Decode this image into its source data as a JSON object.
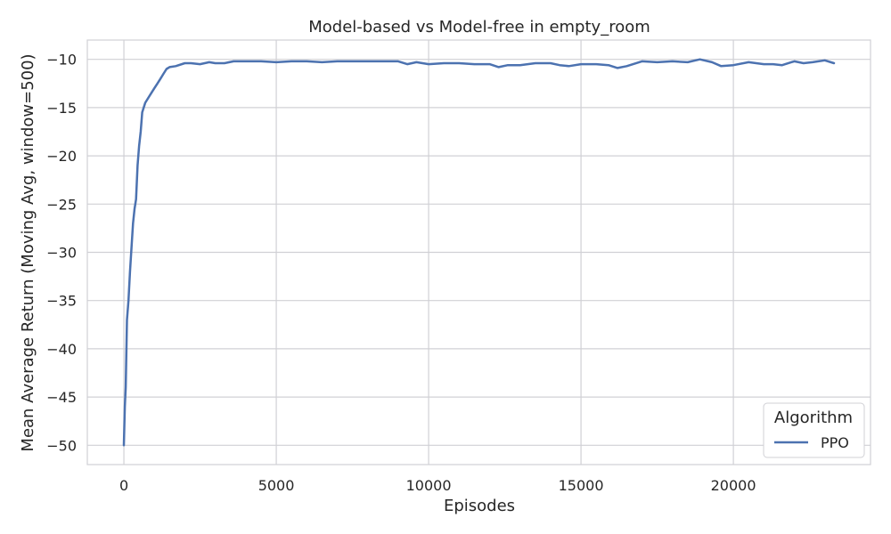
{
  "chart_data": {
    "type": "line",
    "title": "Model-based vs Model-free in empty_room",
    "xlabel": "Episodes",
    "ylabel": "Mean Average Return (Moving Avg, window=500)",
    "xlim": [
      -1200,
      24500
    ],
    "ylim": [
      -52,
      -8
    ],
    "xticks": [
      0,
      5000,
      10000,
      15000,
      20000
    ],
    "yticks": [
      -50,
      -45,
      -40,
      -35,
      -30,
      -25,
      -20,
      -15,
      -10
    ],
    "grid": true,
    "legend": {
      "title": "Algorithm",
      "placement": "bottom-right"
    },
    "series": [
      {
        "name": "PPO",
        "color": "#4c72b0",
        "x": [
          0,
          30,
          60,
          100,
          150,
          200,
          250,
          300,
          350,
          400,
          450,
          500,
          550,
          600,
          650,
          700,
          800,
          900,
          1000,
          1100,
          1200,
          1300,
          1400,
          1500,
          1700,
          2000,
          2200,
          2500,
          2800,
          3000,
          3300,
          3600,
          4000,
          4500,
          5000,
          5500,
          6000,
          6500,
          7000,
          7500,
          8000,
          8500,
          9000,
          9300,
          9600,
          10000,
          10500,
          11000,
          11500,
          12000,
          12300,
          12600,
          13000,
          13500,
          14000,
          14300,
          14600,
          15000,
          15500,
          15900,
          16200,
          16500,
          17000,
          17500,
          18000,
          18500,
          18900,
          19300,
          19600,
          20000,
          20500,
          21000,
          21300,
          21600,
          22000,
          22300,
          22600,
          23000,
          23300
        ],
        "values": [
          -50.0,
          -46.0,
          -44.0,
          -37.0,
          -35.0,
          -32.0,
          -29.5,
          -27.0,
          -25.5,
          -24.5,
          -21.0,
          -19.0,
          -17.5,
          -15.5,
          -15.0,
          -14.5,
          -14.0,
          -13.5,
          -13.0,
          -12.5,
          -12.0,
          -11.5,
          -11.0,
          -10.8,
          -10.7,
          -10.4,
          -10.4,
          -10.5,
          -10.3,
          -10.4,
          -10.4,
          -10.2,
          -10.2,
          -10.2,
          -10.3,
          -10.2,
          -10.2,
          -10.3,
          -10.2,
          -10.2,
          -10.2,
          -10.2,
          -10.2,
          -10.5,
          -10.3,
          -10.5,
          -10.4,
          -10.4,
          -10.5,
          -10.5,
          -10.8,
          -10.6,
          -10.6,
          -10.4,
          -10.4,
          -10.6,
          -10.7,
          -10.5,
          -10.5,
          -10.6,
          -10.9,
          -10.7,
          -10.2,
          -10.3,
          -10.2,
          -10.3,
          -10.0,
          -10.3,
          -10.7,
          -10.6,
          -10.3,
          -10.5,
          -10.5,
          -10.6,
          -10.2,
          -10.4,
          -10.3,
          -10.1,
          -10.4
        ]
      }
    ]
  }
}
